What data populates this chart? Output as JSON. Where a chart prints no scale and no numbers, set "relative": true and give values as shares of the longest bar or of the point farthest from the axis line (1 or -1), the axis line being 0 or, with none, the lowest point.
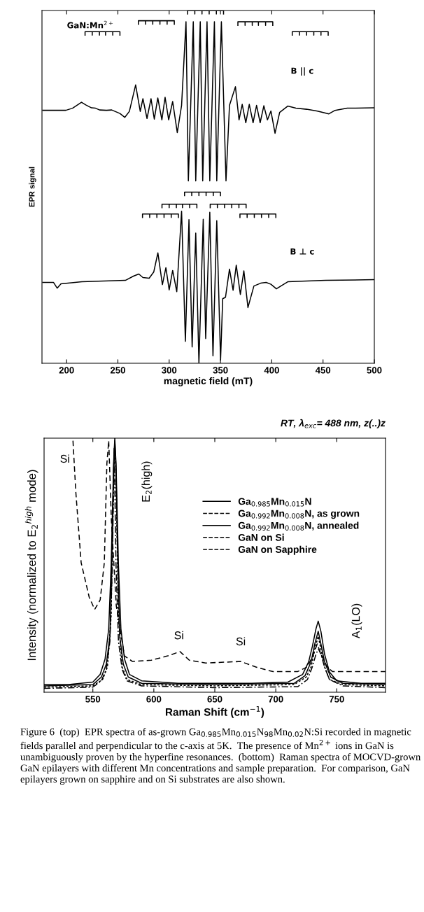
{
  "chart_data": [
    {
      "type": "line",
      "relative": true,
      "xlabel": "magnetic field (mT)",
      "ylabel": "EPR signal",
      "xlim": [
        176,
        500
      ],
      "xticks": [
        200,
        250,
        300,
        350,
        400,
        450,
        500
      ],
      "annotations": [
        "GaN:Mn$^{2+}$",
        "B || c",
        "B ⊥ c"
      ],
      "series": [
        {
          "color": "#000000",
          "line_style": "solid",
          "x": [
            176.8,
            199.2,
            205.8,
            214.5,
            219,
            224.3,
            228.2,
            232.2,
            238.8,
            244,
            252,
            256.7,
            261.2,
            267.3,
            271.8,
            274.4,
            278.4,
            282.3,
            285.5,
            288.9,
            292.9,
            296,
            299.5,
            303.4,
            307.9,
            312.1,
            316.4,
            318.7,
            323.5,
            325.9,
            330.3,
            332.7,
            336.9,
            339.6,
            344.1,
            346.4,
            350.9,
            355.4,
            358.8,
            364.6,
            368.1,
            371.2,
            374.7,
            378.1,
            381.8,
            385.2,
            388.7,
            392.3,
            395.8,
            399.2,
            403.2,
            407.7,
            415.6,
            423.5,
            434,
            444.6,
            455.7,
            461.7,
            473.6,
            499.5
          ],
          "values": [
            0.717,
            0.717,
            0.723,
            0.74,
            0.732,
            0.724,
            0.723,
            0.718,
            0.717,
            0.718,
            0.708,
            0.697,
            0.714,
            0.789,
            0.714,
            0.75,
            0.694,
            0.75,
            0.692,
            0.752,
            0.69,
            0.754,
            0.69,
            0.742,
            0.654,
            0.731,
            0.968,
            0.517,
            0.968,
            0.517,
            0.968,
            0.517,
            0.968,
            0.517,
            0.968,
            0.517,
            0.968,
            0.517,
            0.731,
            0.784,
            0.69,
            0.734,
            0.682,
            0.734,
            0.682,
            0.731,
            0.682,
            0.73,
            0.69,
            0.715,
            0.652,
            0.711,
            0.729,
            0.723,
            0.72,
            0.715,
            0.707,
            0.717,
            0.723,
            0.724
          ]
        },
        {
          "color": "#000000",
          "line_style": "solid",
          "x": [
            176.8,
            187.3,
            190.8,
            194.5,
            215,
            257.3,
            265.2,
            270.4,
            274.4,
            280.5,
            285,
            289,
            293.4,
            296.8,
            300,
            303.4,
            307.4,
            312.1,
            315.8,
            319.3,
            322.4,
            325.9,
            329,
            333.2,
            335.6,
            339.6,
            342.7,
            346.4,
            350.1,
            352.2,
            354.9,
            358.8,
            362.3,
            365.4,
            369.4,
            372.8,
            376.8,
            382.6,
            389.2,
            394.5,
            399.2,
            404.5,
            415.6,
            452.5,
            499.5
          ],
          "values": [
            0.229,
            0.229,
            0.213,
            0.225,
            0.231,
            0.235,
            0.247,
            0.253,
            0.243,
            0.241,
            0.259,
            0.313,
            0.223,
            0.271,
            0.208,
            0.263,
            0.203,
            0.431,
            0.062,
            0.407,
            0.046,
            0.369,
            0,
            0.408,
            0.07,
            0.428,
            0.021,
            0.404,
            0.009,
            0.183,
            0.187,
            0.267,
            0.207,
            0.278,
            0.195,
            0.262,
            0.158,
            0.219,
            0.227,
            0.229,
            0.224,
            0.211,
            0.231,
            0.235,
            0.237
          ]
        },
        {
          "color": "#000000",
          "line_style": "solid",
          "x": [
            218,
            218,
            225,
            225,
            225,
            232,
            232,
            232,
            238,
            238,
            238,
            245,
            245,
            245,
            252,
            252
          ],
          "values": [
            0.93,
            0.94,
            0.94,
            0.93,
            0.94,
            0.94,
            0.93,
            0.94,
            0.94,
            0.93,
            0.94,
            0.94,
            0.93,
            0.94,
            0.94,
            0.93
          ]
        },
        {
          "color": "#000000",
          "line_style": "solid",
          "x": [
            270,
            270,
            277,
            277,
            277,
            284,
            284,
            284,
            291,
            291,
            291,
            298,
            298,
            298,
            305,
            305
          ],
          "values": [
            0.961,
            0.971,
            0.971,
            0.961,
            0.971,
            0.971,
            0.961,
            0.971,
            0.971,
            0.961,
            0.971,
            0.971,
            0.961,
            0.971,
            0.971,
            0.961
          ]
        },
        {
          "color": "#000000",
          "line_style": "solid",
          "x": [
            318,
            318,
            325,
            325,
            325,
            332,
            332,
            332,
            339,
            339,
            339,
            346,
            346,
            346,
            353,
            353
          ],
          "values": [
            0.99,
            1,
            1,
            0.99,
            1,
            1,
            0.99,
            1,
            1,
            0.99,
            1,
            1,
            0.99,
            1,
            1,
            0.99
          ]
        },
        {
          "color": "#000000",
          "line_style": "solid",
          "x": [
            367,
            367,
            374,
            374,
            374,
            381,
            381,
            381,
            387,
            387,
            387,
            394,
            394,
            394,
            401,
            401
          ],
          "values": [
            0.958,
            0.968,
            0.968,
            0.958,
            0.968,
            0.968,
            0.958,
            0.968,
            0.968,
            0.958,
            0.968,
            0.968,
            0.958,
            0.968,
            0.968,
            0.958
          ]
        },
        {
          "color": "#000000",
          "line_style": "solid",
          "x": [
            420,
            420,
            427,
            427,
            427,
            434,
            434,
            434,
            441,
            441,
            441,
            448,
            448,
            448,
            455,
            455
          ],
          "values": [
            0.93,
            0.94,
            0.94,
            0.93,
            0.94,
            0.94,
            0.93,
            0.94,
            0.94,
            0.93,
            0.94,
            0.94,
            0.93,
            0.94,
            0.94,
            0.93
          ]
        },
        {
          "color": "#000000",
          "line_style": "solid",
          "x": [
            315,
            315,
            322,
            322,
            322,
            329,
            329,
            329,
            336,
            336,
            336,
            343,
            343,
            343,
            350,
            350
          ],
          "values": [
            0.475,
            0.485,
            0.485,
            0.475,
            0.485,
            0.485,
            0.475,
            0.485,
            0.485,
            0.475,
            0.485,
            0.485,
            0.475,
            0.485,
            0.485,
            0.475
          ]
        },
        {
          "color": "#000000",
          "line_style": "solid",
          "x": [
            293,
            293,
            300,
            300,
            300,
            307,
            307,
            307,
            313,
            313,
            313,
            320,
            320,
            320,
            327,
            327
          ],
          "values": [
            0.441,
            0.451,
            0.451,
            0.441,
            0.451,
            0.451,
            0.441,
            0.451,
            0.451,
            0.441,
            0.451,
            0.451,
            0.441,
            0.451,
            0.451,
            0.441
          ]
        },
        {
          "color": "#000000",
          "line_style": "solid",
          "x": [
            340,
            340,
            347,
            347,
            347,
            354,
            354,
            354,
            361,
            361,
            361,
            368,
            368,
            368,
            375,
            375
          ],
          "values": [
            0.441,
            0.451,
            0.451,
            0.441,
            0.451,
            0.451,
            0.441,
            0.451,
            0.451,
            0.441,
            0.451,
            0.451,
            0.441,
            0.451,
            0.451,
            0.441
          ]
        },
        {
          "color": "#000000",
          "line_style": "solid",
          "x": [
            274,
            274,
            281,
            281,
            281,
            288,
            288,
            288,
            295,
            295,
            295,
            302,
            302,
            302,
            309,
            309
          ],
          "values": [
            0.413,
            0.423,
            0.423,
            0.413,
            0.423,
            0.423,
            0.413,
            0.423,
            0.423,
            0.413,
            0.423,
            0.423,
            0.413,
            0.423,
            0.423,
            0.413
          ]
        },
        {
          "color": "#000000",
          "line_style": "solid",
          "x": [
            369,
            369,
            376,
            376,
            376,
            383,
            383,
            383,
            390,
            390,
            390,
            397,
            397,
            397,
            404,
            404
          ],
          "values": [
            0.413,
            0.423,
            0.423,
            0.413,
            0.423,
            0.423,
            0.413,
            0.423,
            0.423,
            0.413,
            0.423,
            0.423,
            0.413,
            0.423,
            0.423,
            0.413
          ]
        }
      ]
    },
    {
      "type": "line",
      "relative": true,
      "title": "RT, λ$_{exc}$= 488 nm, z(..)z",
      "xlabel": "Raman Shift (cm$^{−1}$)",
      "ylabel": "Intensity (normalized to E$_{2}$$^{high}$ mode)",
      "xlim": [
        510,
        790
      ],
      "xticks": [
        550,
        600,
        650,
        700,
        750
      ],
      "legend": "top right",
      "annotations": [
        "Si",
        "E$_{2}$(high)",
        "Si",
        "Si",
        "A$_{1}$(LO)",
        "Figure 6  (top)  EPR spectra of as-grown Ga$_{0.985}$Mn$_{0.015}$N$_{98}$Mn$_{0.02}$N:Si recorded in magnetic fields parallel and perpendicular to the c-axis at 5K.  The presence of Mn$^{2+}$ ions in GaN is unambiguously proven by the hyperfine resonances.  (bottom)  Raman spectra of MOCVD-grown GaN epilayers with different Mn concentrations and sample preparation.  For comparison, GaN epilayers grown on sapphire and on Si substrates are also shown."
      ],
      "series": [
        {
          "name": "Ga$_{0.985}$Mn$_{0.015}$N",
          "color": "#000000",
          "line_style": "solid",
          "x": [
            510,
            530,
            550,
            556,
            560,
            563,
            565,
            567,
            568,
            569,
            571,
            573,
            576,
            580,
            590,
            620,
            680,
            710,
            722,
            727,
            730,
            733,
            734.8,
            737,
            740,
            744,
            750,
            770,
            790
          ],
          "values": [
            0.03,
            0.03,
            0.04,
            0.07,
            0.13,
            0.25,
            0.5,
            0.9,
            1.0,
            0.9,
            0.5,
            0.25,
            0.13,
            0.07,
            0.045,
            0.035,
            0.035,
            0.04,
            0.07,
            0.12,
            0.18,
            0.25,
            0.28,
            0.24,
            0.15,
            0.08,
            0.045,
            0.035,
            0.035
          ]
        },
        {
          "name": "Ga$_{0.992}$Mn$_{0.008}$N, as grown",
          "color": "#000000",
          "line_style": "dotted",
          "x": [
            510,
            550,
            558,
            562,
            565,
            567,
            568,
            569,
            571,
            574,
            578,
            590,
            650,
            715,
            725,
            729,
            732,
            734.8,
            737,
            740,
            744,
            755,
            790
          ],
          "values": [
            0.02,
            0.025,
            0.05,
            0.1,
            0.3,
            0.85,
            0.97,
            0.85,
            0.3,
            0.1,
            0.05,
            0.03,
            0.025,
            0.03,
            0.06,
            0.1,
            0.17,
            0.22,
            0.17,
            0.1,
            0.05,
            0.03,
            0.025
          ]
        },
        {
          "name": "Ga$_{0.992}$Mn$_{0.008}$N, annealed",
          "color": "#000000",
          "line_style": "solid",
          "x": [
            510,
            550,
            557,
            561,
            564,
            566,
            567,
            568,
            569,
            570,
            572,
            575,
            579,
            590,
            650,
            715,
            724,
            729,
            732,
            734.8,
            737,
            740,
            745,
            755,
            790
          ],
          "values": [
            0.025,
            0.03,
            0.06,
            0.11,
            0.22,
            0.6,
            0.88,
            0.99,
            0.88,
            0.6,
            0.22,
            0.11,
            0.06,
            0.035,
            0.03,
            0.035,
            0.065,
            0.12,
            0.19,
            0.24,
            0.19,
            0.12,
            0.06,
            0.035,
            0.03
          ]
        },
        {
          "name": "GaN on Si",
          "color": "#000000",
          "line_style": "dashed",
          "x": [
            533.7,
            536,
            540.4,
            547,
            551.5,
            556,
            559.4,
            561.5,
            563,
            565.2,
            569.2,
            575.9,
            582.5,
            598,
            611.4,
            621.4,
            629.1,
            642.4,
            671.2,
            684.5,
            697.8,
            717.8,
            726,
            731,
            734,
            737,
            742,
            746.6,
            790
          ],
          "values": [
            0.99,
            0.79,
            0.51,
            0.374,
            0.326,
            0.363,
            0.51,
            0.9,
            0.99,
            0.677,
            0.34,
            0.143,
            0.121,
            0.126,
            0.143,
            0.16,
            0.126,
            0.115,
            0.121,
            0.098,
            0.081,
            0.081,
            0.1,
            0.15,
            0.19,
            0.15,
            0.1,
            0.081,
            0.081
          ]
        },
        {
          "name": "GaN on Sapphire",
          "color": "#000000",
          "line_style": "dashdot",
          "x": [
            510,
            550,
            557,
            561,
            564,
            566,
            567.5,
            569,
            571,
            574,
            578,
            590,
            650,
            718,
            726,
            730,
            733,
            735,
            737,
            740,
            744,
            755,
            790
          ],
          "values": [
            0.015,
            0.02,
            0.045,
            0.09,
            0.2,
            0.5,
            0.96,
            0.5,
            0.2,
            0.09,
            0.045,
            0.025,
            0.018,
            0.022,
            0.05,
            0.1,
            0.15,
            0.17,
            0.15,
            0.1,
            0.05,
            0.025,
            0.018
          ]
        }
      ]
    }
  ]
}
